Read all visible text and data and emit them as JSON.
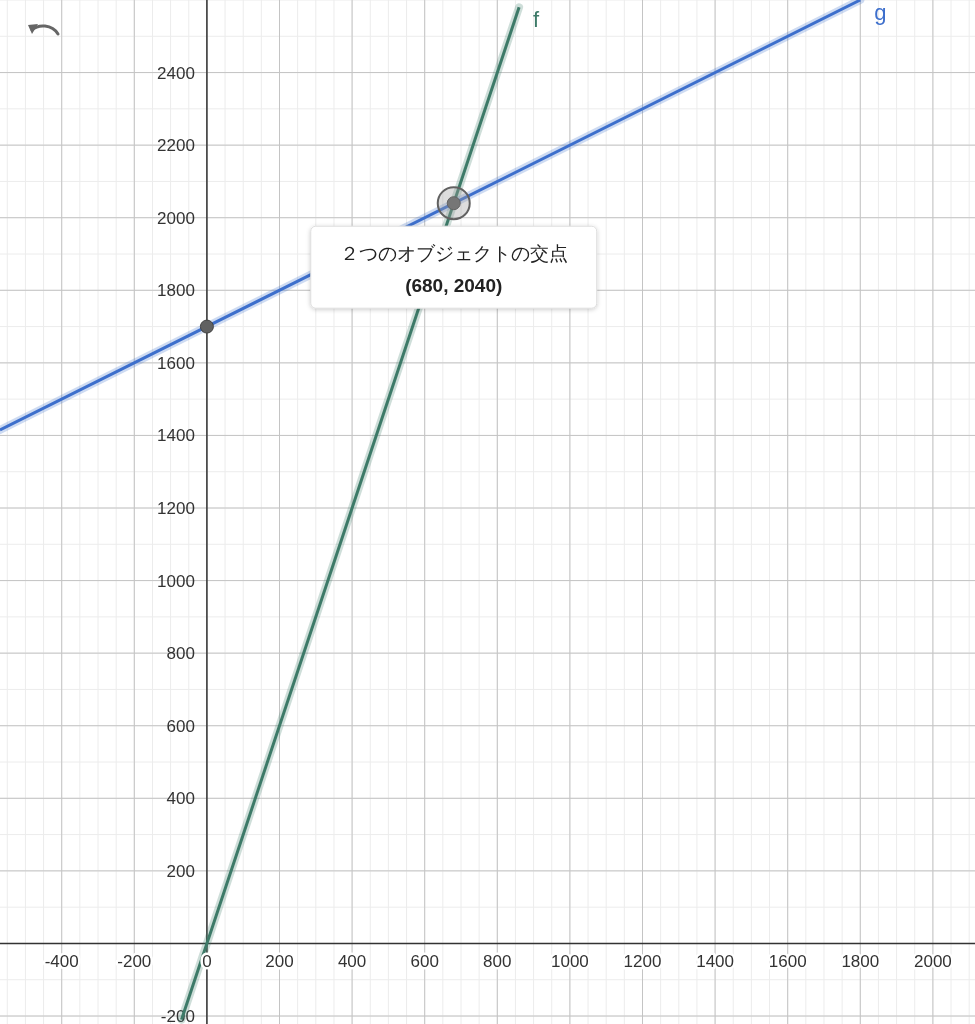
{
  "chart_data": {
    "type": "line",
    "xlim": [
      -570,
      2116
    ],
    "ylim": [
      -222,
      2600
    ],
    "xticks": [
      -400,
      -200,
      0,
      200,
      400,
      600,
      800,
      1000,
      1200,
      1400,
      1600,
      1800,
      2000
    ],
    "yticks": [
      -200,
      200,
      400,
      600,
      800,
      1000,
      1200,
      1400,
      1600,
      1800,
      2000,
      2200,
      2400
    ],
    "grid": true,
    "series": [
      {
        "name": "f",
        "color": "#3d7a68",
        "x": [
          -70,
          860
        ],
        "values": [
          -210,
          2580
        ]
      },
      {
        "name": "g",
        "color": "#3d6fcc",
        "x": [
          -570,
          1800
        ],
        "values": [
          1415,
          2600
        ]
      },
      {
        "type": "scatter",
        "color": "#616161",
        "marker": "circle",
        "x": [
          0,
          680
        ],
        "values": [
          1700,
          2040
        ]
      }
    ],
    "annotations": [
      {
        "text": "２つのオブジェクトの交点",
        "x": 680,
        "y": 2040
      },
      "(680, 2040)"
    ]
  }
}
